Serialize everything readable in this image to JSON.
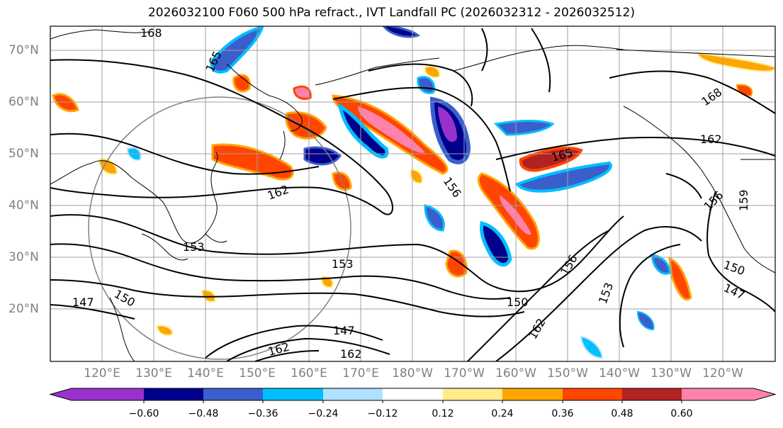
{
  "title": "2026032100 F060 500 hPa refract., IVT Landfall PC (2026032312 - 2026032512)",
  "lat_labels": [
    "70°N",
    "60°N",
    "50°N",
    "40°N",
    "30°N",
    "20°N"
  ],
  "lon_labels": [
    "120°E",
    "130°E",
    "140°E",
    "150°E",
    "160°E",
    "170°E",
    "180°W",
    "170°W",
    "160°W",
    "150°W",
    "140°W",
    "130°W",
    "120°W"
  ],
  "colorbar": {
    "ticks": [
      "−0.60",
      "−0.48",
      "−0.36",
      "−0.24",
      "−0.12",
      "0.12",
      "0.24",
      "0.36",
      "0.48",
      "0.60"
    ],
    "colors": [
      "#9932cc",
      "#00008b",
      "#3a5fcd",
      "#00bfff",
      "#b0e2ff",
      "#ffffff",
      "#ffec8b",
      "#ffa500",
      "#ff4500",
      "#b22222",
      "#ff82ab"
    ]
  },
  "contour_labels": [
    "168",
    "165",
    "162",
    "159",
    "156",
    "153",
    "150",
    "147"
  ],
  "colors": {
    "map_border": "#000000",
    "grid": "#a0a0a0",
    "labels": "#808080"
  }
}
